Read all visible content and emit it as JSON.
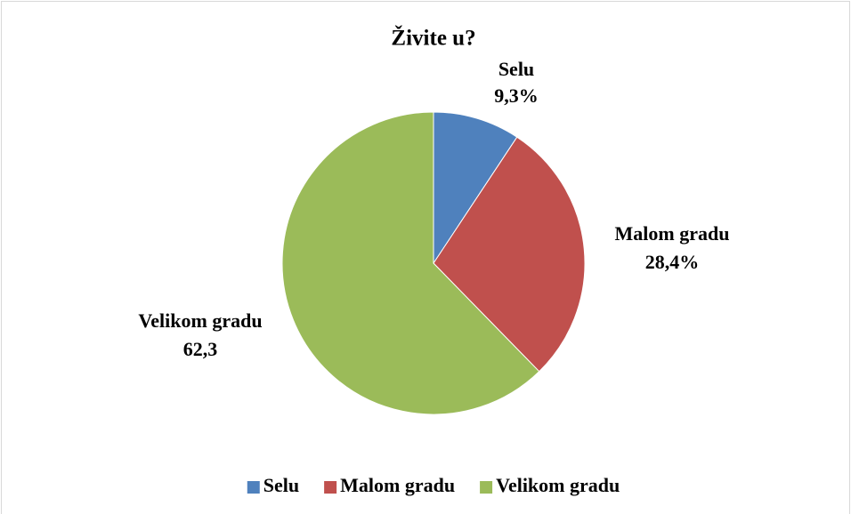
{
  "chart_data": {
    "type": "pie",
    "title": "Živite u?",
    "categories": [
      "Selu",
      "Malom gradu",
      "Velikom gradu"
    ],
    "values": [
      9.3,
      28.4,
      62.3
    ],
    "value_labels": [
      "9,3%",
      "28,4%",
      "62,3"
    ],
    "colors": [
      "#4f81bd",
      "#c0504d",
      "#9bbb59"
    ],
    "legend": "bottom"
  }
}
